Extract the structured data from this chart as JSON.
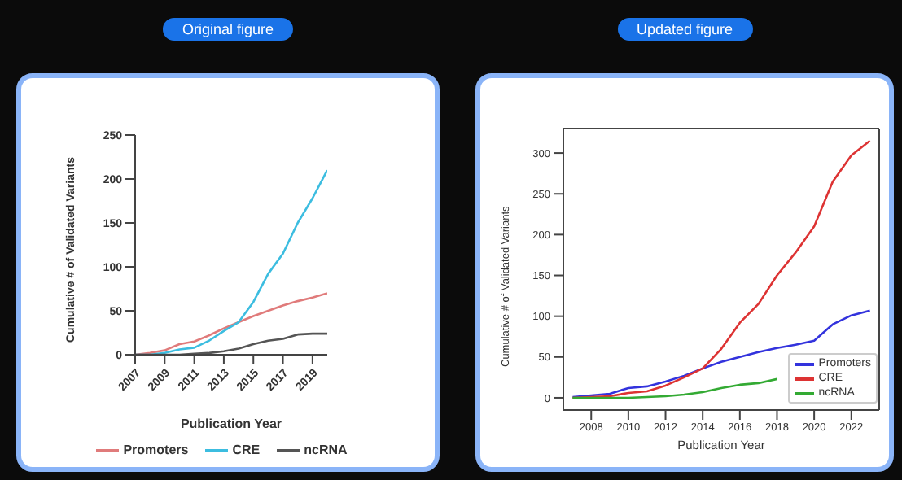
{
  "chart_data": [
    {
      "type": "line",
      "title": "Original figure",
      "xlabel": "Publication Year",
      "ylabel": "Cumulative # of Validated Variants",
      "x": [
        2007,
        2008,
        2009,
        2010,
        2011,
        2012,
        2013,
        2014,
        2015,
        2016,
        2017,
        2018,
        2019,
        2020
      ],
      "xlim": [
        2007,
        2020
      ],
      "xticks": [
        2007,
        2009,
        2011,
        2013,
        2015,
        2017,
        2019
      ],
      "ylim": [
        0,
        250
      ],
      "yticks": [
        0,
        50,
        100,
        150,
        200,
        250
      ],
      "grid": false,
      "legend": "bottom",
      "series": [
        {
          "name": "Promoters",
          "color": "#e07b7b",
          "values": [
            0,
            2,
            5,
            12,
            15,
            22,
            30,
            37,
            44,
            50,
            56,
            61,
            65,
            70
          ]
        },
        {
          "name": "CRE",
          "color": "#3cbde0",
          "values": [
            0,
            0,
            2,
            6,
            8,
            16,
            27,
            37,
            60,
            92,
            115,
            150,
            178,
            210
          ]
        },
        {
          "name": "ncRNA",
          "color": "#555555",
          "values": [
            0,
            0,
            0,
            0,
            1,
            2,
            4,
            7,
            12,
            16,
            18,
            23,
            24,
            24
          ]
        }
      ]
    },
    {
      "type": "line",
      "title": "Updated figure",
      "xlabel": "Publication Year",
      "ylabel": "Cumulative # of Validated Variants",
      "x": [
        2007,
        2008,
        2009,
        2010,
        2011,
        2012,
        2013,
        2014,
        2015,
        2016,
        2017,
        2018,
        2019,
        2020,
        2021,
        2022,
        2023
      ],
      "xlim": [
        2006.5,
        2023.5
      ],
      "xticks": [
        2008,
        2010,
        2012,
        2014,
        2016,
        2018,
        2020,
        2022
      ],
      "ylim": [
        -15,
        330
      ],
      "yticks": [
        0,
        50,
        100,
        150,
        200,
        250,
        300
      ],
      "grid": false,
      "legend": "bottom right",
      "series": [
        {
          "name": "Promoters",
          "color": "#3333dd",
          "values": [
            1,
            3,
            5,
            12,
            14,
            20,
            27,
            36,
            44,
            50,
            56,
            61,
            65,
            70,
            90,
            101,
            107
          ]
        },
        {
          "name": "CRE",
          "color": "#dd3333",
          "values": [
            0,
            1,
            2,
            6,
            8,
            15,
            25,
            36,
            60,
            92,
            115,
            150,
            178,
            210,
            265,
            297,
            315
          ]
        },
        {
          "name": "ncRNA",
          "color": "#33aa33",
          "values": [
            0,
            0,
            0,
            0,
            1,
            2,
            4,
            7,
            12,
            16,
            18,
            23,
            null,
            null,
            null,
            null,
            null
          ]
        }
      ]
    }
  ]
}
